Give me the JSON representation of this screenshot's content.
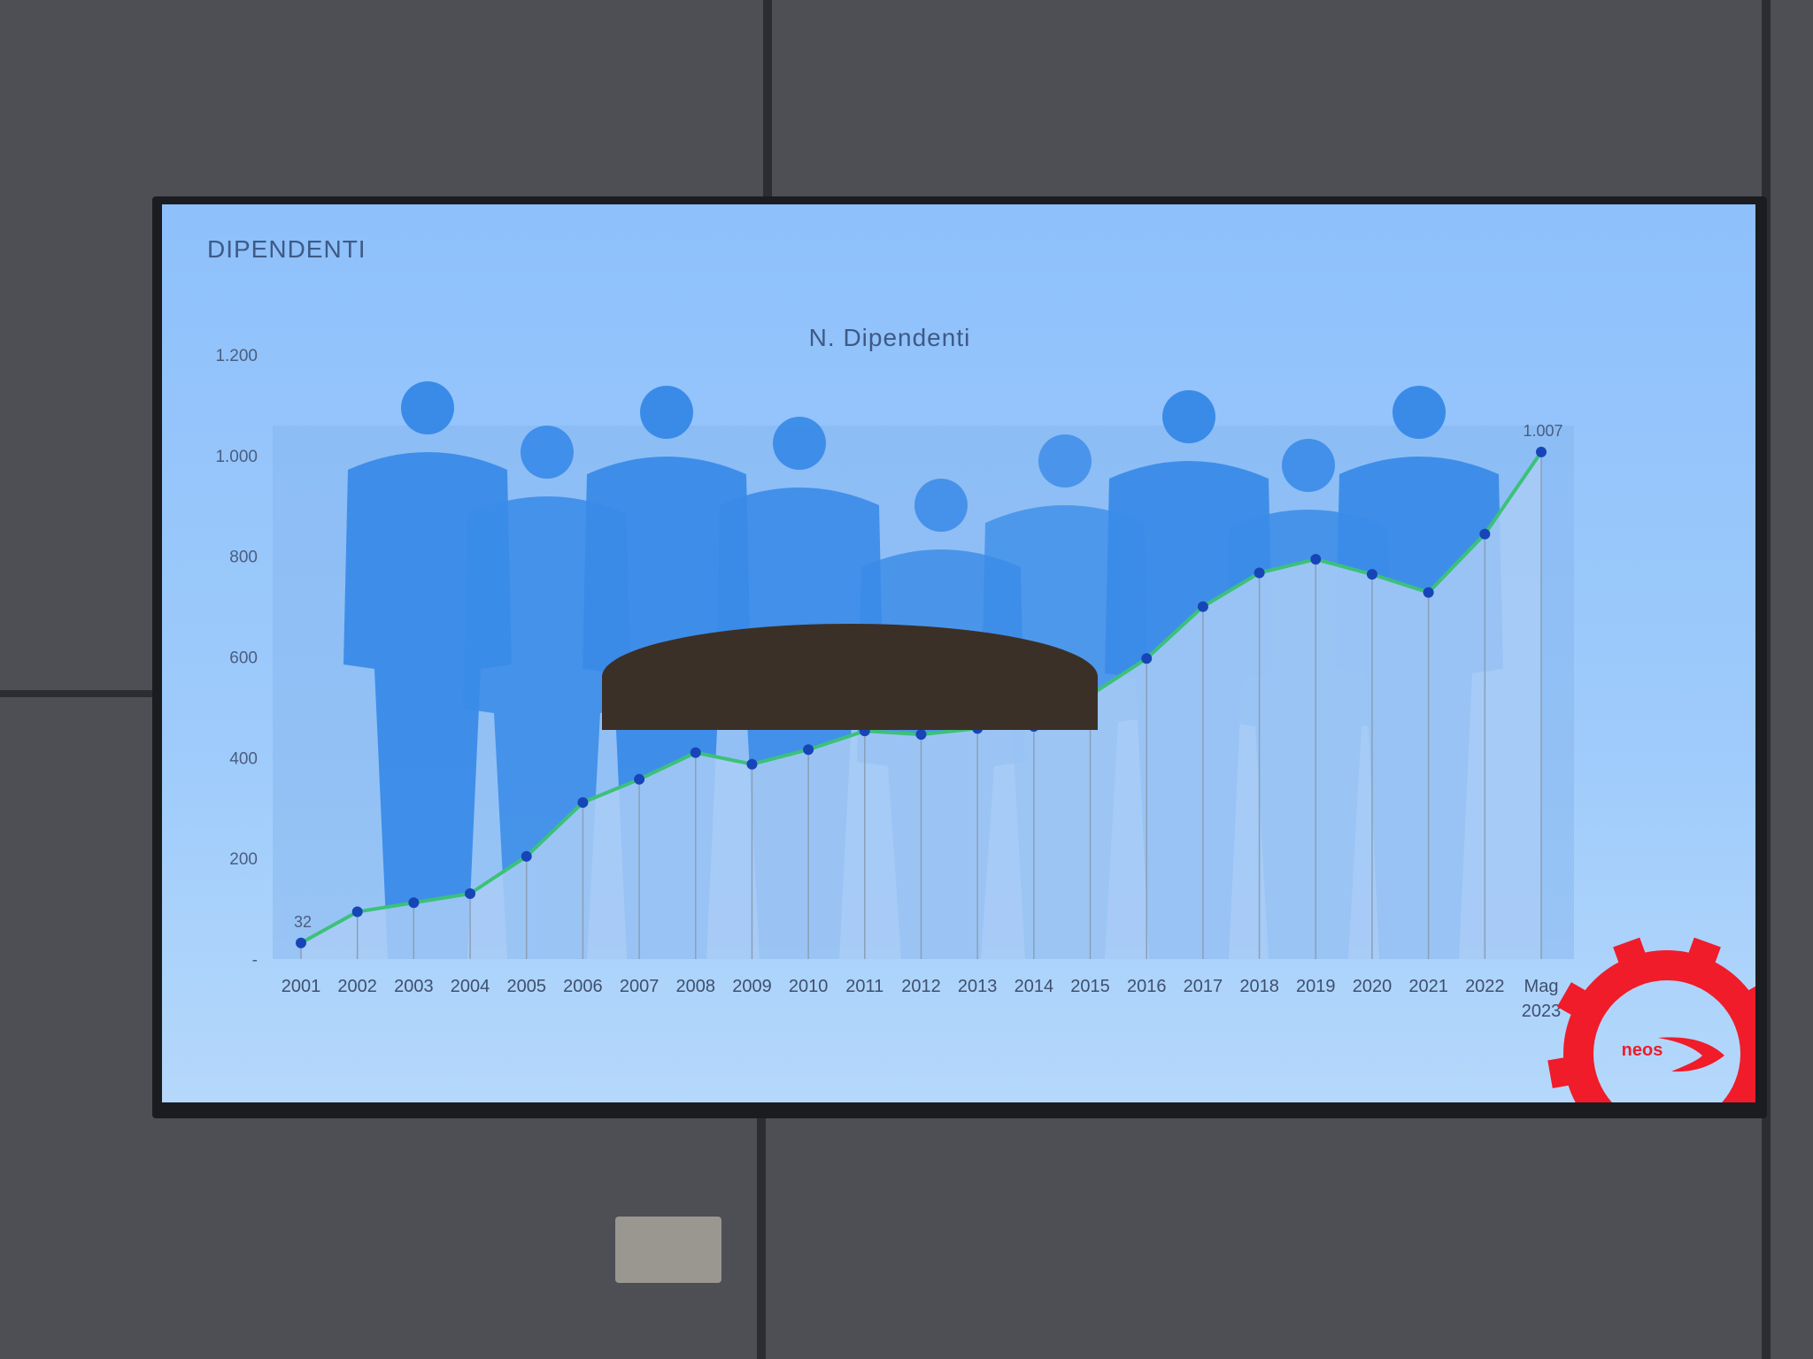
{
  "slide": {
    "title": "DIPENDENTI",
    "logo_text": "neos"
  },
  "colors": {
    "line": "#3cc17a",
    "marker": "#1745b8",
    "silhouette": "#3a8be8",
    "logo": "#f01c2a",
    "background": "#9ecbfb"
  },
  "chart_data": {
    "type": "line",
    "title": "N. Dipendenti",
    "xlabel": "",
    "ylabel": "",
    "ylim": [
      0,
      1200
    ],
    "yticks": [
      "-",
      "200",
      "400",
      "600",
      "800",
      "1.000",
      "1.200"
    ],
    "grid": false,
    "categories": [
      "2001",
      "2002",
      "2003",
      "2004",
      "2005",
      "2006",
      "2007",
      "2008",
      "2009",
      "2010",
      "2011",
      "2012",
      "2013",
      "2014",
      "2015",
      "2016",
      "2017",
      "2018",
      "2019",
      "2020",
      "2021",
      "2022",
      "Mag 2023"
    ],
    "values": [
      32,
      94,
      112,
      130,
      204,
      311,
      357,
      410,
      387,
      416,
      453,
      446,
      458,
      462,
      524,
      597,
      700,
      767,
      794,
      764,
      728,
      844,
      1007
    ],
    "data_labels": [
      {
        "category": "2001",
        "text": "32"
      },
      {
        "category": "Mag 2023",
        "text": "1.007"
      }
    ]
  }
}
